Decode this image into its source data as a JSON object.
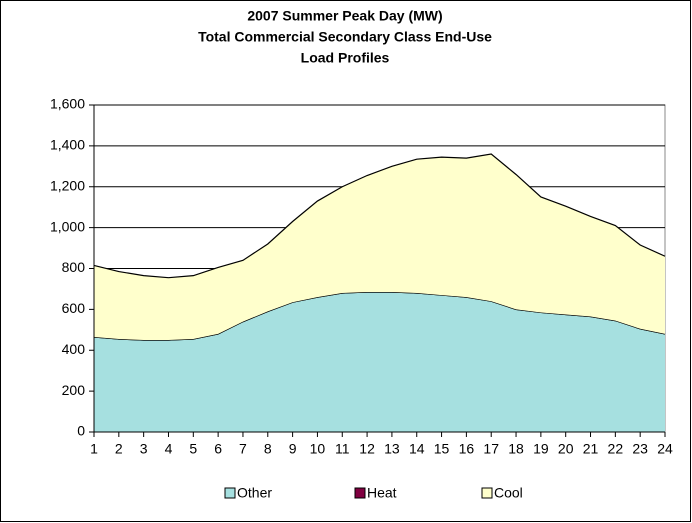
{
  "chart_data": {
    "type": "stacked_area",
    "title": [
      "2007 Summer Peak Day (MW)",
      "Total Commercial Secondary Class End-Use",
      "Load Profiles"
    ],
    "categories": [
      "1",
      "2",
      "3",
      "4",
      "5",
      "6",
      "7",
      "8",
      "9",
      "10",
      "11",
      "12",
      "13",
      "14",
      "15",
      "16",
      "17",
      "18",
      "19",
      "20",
      "21",
      "22",
      "23",
      "24"
    ],
    "series": [
      {
        "name": "Other",
        "color": "#a6e0e0",
        "values": [
          465,
          455,
          450,
          450,
          455,
          480,
          540,
          590,
          635,
          660,
          680,
          685,
          685,
          680,
          670,
          660,
          640,
          600,
          585,
          575,
          565,
          545,
          505,
          480
        ]
      },
      {
        "name": "Heat",
        "color": "#800040",
        "values": [
          0,
          0,
          0,
          0,
          0,
          0,
          0,
          0,
          0,
          0,
          0,
          0,
          0,
          0,
          0,
          0,
          0,
          0,
          0,
          0,
          0,
          0,
          0,
          0
        ]
      },
      {
        "name": "Cool",
        "color": "#ffffcc",
        "values": [
          350,
          330,
          315,
          305,
          310,
          325,
          300,
          330,
          395,
          470,
          520,
          570,
          615,
          655,
          675,
          680,
          720,
          660,
          565,
          530,
          490,
          465,
          410,
          380
        ]
      }
    ],
    "ylim": [
      0,
      1600
    ],
    "yticks": [
      0,
      200,
      400,
      600,
      800,
      {
        "value": 1000,
        "label": "1,000"
      },
      {
        "value": 1200,
        "label": "1,200"
      },
      {
        "value": 1400,
        "label": "1,400"
      },
      {
        "value": 1600,
        "label": "1,600"
      }
    ],
    "grid": true,
    "legend": "bottom"
  }
}
